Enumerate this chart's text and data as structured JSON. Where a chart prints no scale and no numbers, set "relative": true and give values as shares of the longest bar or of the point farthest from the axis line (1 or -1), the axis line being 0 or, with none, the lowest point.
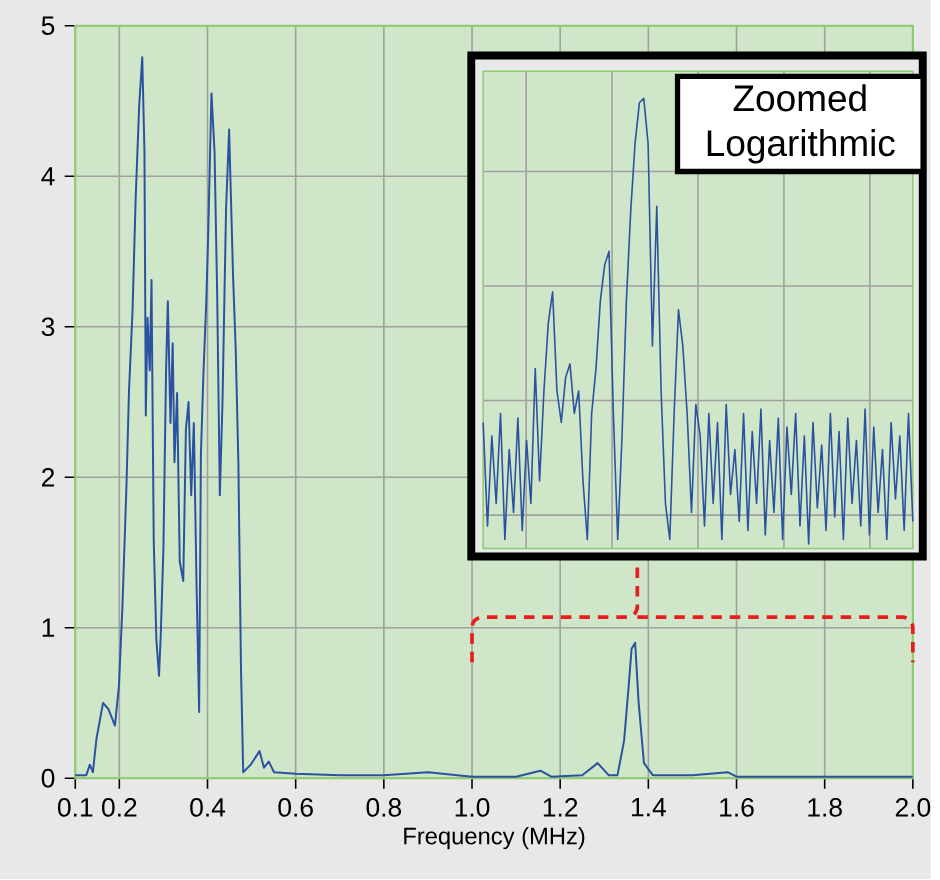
{
  "chart_data": [
    {
      "type": "line",
      "xlabel": "Frequency (MHz)",
      "color": "#2a52a0",
      "marker": "none",
      "grid": true,
      "xlim": [
        0.1,
        2.0
      ],
      "ylim": [
        0,
        5
      ],
      "xticks": [
        0.1,
        0.2,
        0.4,
        0.6,
        0.8,
        {
          "value": 1,
          "label": "1.0"
        },
        1.2,
        1.4,
        1.6,
        1.8,
        {
          "value": 2,
          "label": "2.0"
        }
      ],
      "yticks": [
        0,
        1,
        2,
        3,
        4,
        5
      ],
      "x": [
        0.1,
        0.125,
        0.133,
        0.14,
        0.148,
        0.163,
        0.175,
        0.19,
        0.199,
        0.207,
        0.216,
        0.222,
        0.23,
        0.237,
        0.245,
        0.252,
        0.257,
        0.26,
        0.264,
        0.269,
        0.273,
        0.278,
        0.284,
        0.29,
        0.294,
        0.3,
        0.306,
        0.31,
        0.316,
        0.321,
        0.325,
        0.331,
        0.337,
        0.345,
        0.351,
        0.357,
        0.363,
        0.369,
        0.375,
        0.381,
        0.385,
        0.391,
        0.397,
        0.401,
        0.409,
        0.416,
        0.422,
        0.428,
        0.434,
        0.442,
        0.449,
        0.458,
        0.464,
        0.47,
        0.476,
        0.481,
        0.498,
        0.518,
        0.528,
        0.539,
        0.551,
        0.6,
        0.7,
        0.8,
        0.9,
        1.0,
        1.1,
        1.155,
        1.18,
        1.25,
        1.285,
        1.31,
        1.33,
        1.345,
        1.355,
        1.362,
        1.37,
        1.378,
        1.39,
        1.41,
        1.5,
        1.58,
        1.6,
        2.0
      ],
      "values": [
        0.02,
        0.02,
        0.09,
        0.04,
        0.26,
        0.5,
        0.46,
        0.35,
        0.61,
        1.14,
        1.93,
        2.58,
        3.11,
        3.85,
        4.47,
        4.79,
        4.16,
        2.41,
        3.06,
        2.71,
        3.31,
        1.58,
        0.92,
        0.68,
        0.96,
        1.53,
        2.71,
        3.17,
        2.36,
        2.89,
        2.1,
        2.56,
        1.44,
        1.31,
        2.32,
        2.5,
        1.88,
        2.36,
        1.31,
        0.44,
        2.15,
        2.71,
        3.15,
        3.55,
        4.55,
        4.16,
        3.2,
        1.88,
        2.5,
        3.77,
        4.31,
        3.33,
        2.85,
        2.1,
        0.72,
        0.04,
        0.09,
        0.18,
        0.07,
        0.11,
        0.04,
        0.03,
        0.02,
        0.02,
        0.04,
        0.01,
        0.01,
        0.05,
        0.01,
        0.02,
        0.1,
        0.02,
        0.02,
        0.25,
        0.6,
        0.86,
        0.9,
        0.5,
        0.1,
        0.02,
        0.02,
        0.04,
        0.01,
        0.01
      ]
    },
    {
      "type": "line",
      "relative": true,
      "color": "#2a52a0",
      "marker": "none",
      "grid": true,
      "annotations": [
        "Zoomed Logarithmic"
      ],
      "categories": [
        null,
        null,
        null,
        null,
        null,
        null,
        null,
        null,
        null,
        null,
        null,
        null,
        null,
        null,
        null,
        null,
        null,
        null,
        null,
        null,
        null,
        null,
        null,
        null,
        null,
        null,
        null,
        null,
        null,
        null,
        null,
        null,
        null,
        null,
        null,
        null,
        null,
        null,
        null,
        null,
        null,
        null,
        null,
        null,
        null,
        null,
        null,
        null,
        null,
        null,
        null,
        null,
        null,
        null,
        null,
        null,
        null,
        null,
        null,
        null,
        null,
        null,
        null,
        null,
        null,
        null,
        null,
        null,
        null,
        null,
        null,
        null,
        null,
        null,
        null,
        null,
        null,
        null,
        null,
        null,
        null,
        null,
        null,
        null,
        null,
        null,
        null,
        null,
        null,
        null,
        null,
        null,
        null,
        null,
        null,
        null,
        null,
        null,
        null,
        null
      ],
      "values": [
        0.28,
        0.05,
        0.25,
        0.1,
        0.3,
        0.02,
        0.22,
        0.08,
        0.29,
        0.04,
        0.24,
        0.1,
        0.4,
        0.15,
        0.35,
        0.5,
        0.57,
        0.35,
        0.28,
        0.38,
        0.41,
        0.3,
        0.35,
        0.15,
        0.02,
        0.3,
        0.4,
        0.55,
        0.63,
        0.66,
        0.3,
        0.02,
        0.25,
        0.55,
        0.75,
        0.9,
        0.99,
        1.0,
        0.9,
        0.45,
        0.76,
        0.35,
        0.1,
        0.02,
        0.3,
        0.53,
        0.45,
        0.3,
        0.08,
        0.32,
        0.25,
        0.05,
        0.3,
        0.1,
        0.28,
        0.02,
        0.32,
        0.12,
        0.22,
        0.06,
        0.3,
        0.04,
        0.26,
        0.1,
        0.31,
        0.03,
        0.24,
        0.08,
        0.29,
        0.02,
        0.27,
        0.12,
        0.3,
        0.05,
        0.25,
        0.01,
        0.28,
        0.09,
        0.23,
        0.04,
        0.3,
        0.07,
        0.26,
        0.02,
        0.29,
        0.1,
        0.24,
        0.05,
        0.31,
        0.03,
        0.27,
        0.08,
        0.22,
        0.02,
        0.28,
        0.11,
        0.25,
        0.04,
        0.3,
        0.06
      ]
    }
  ]
}
